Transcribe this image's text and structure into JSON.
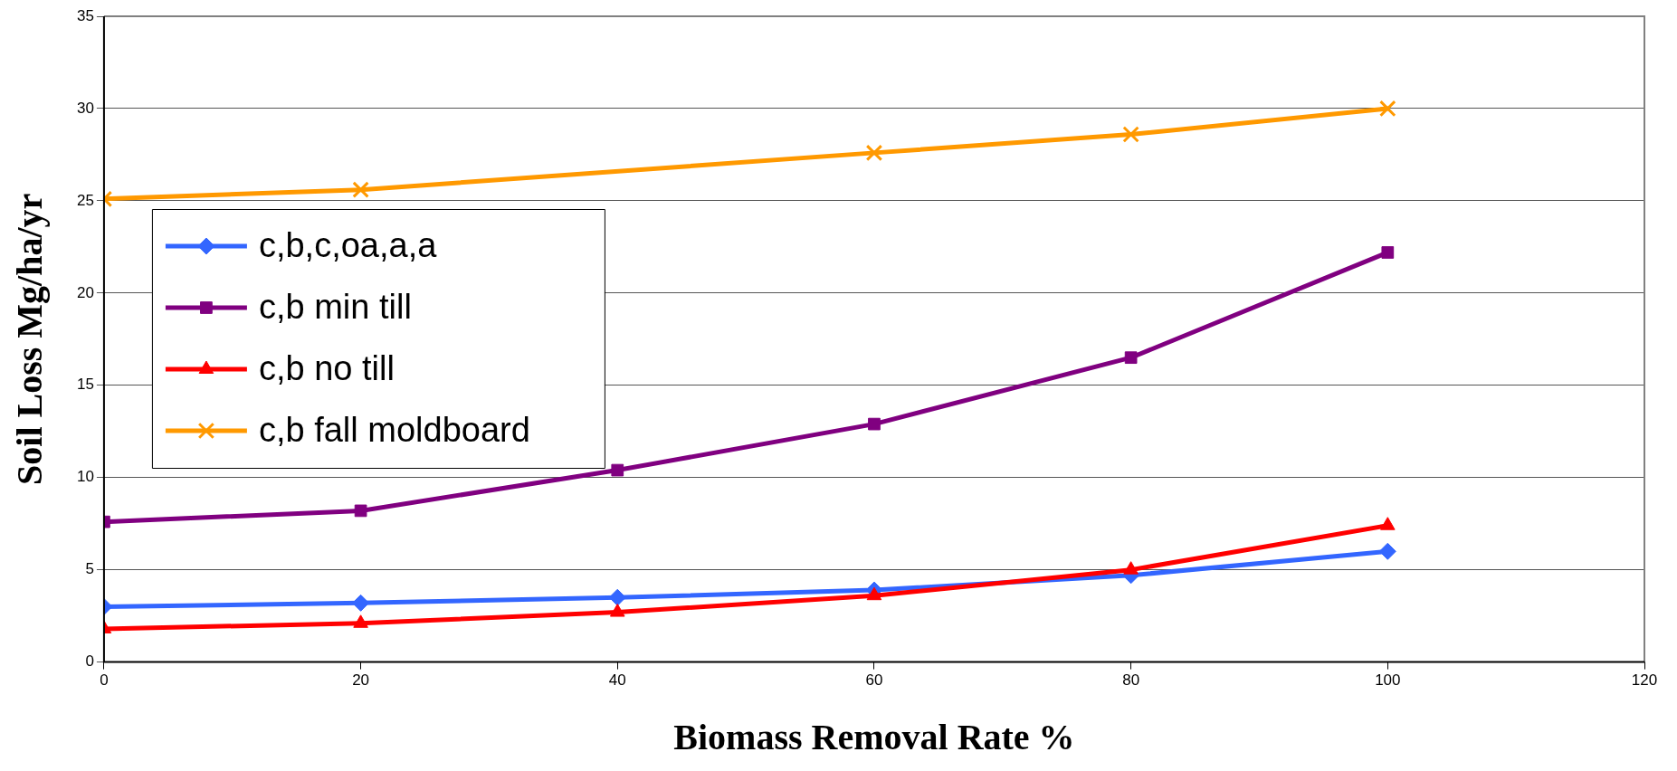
{
  "chart_data": {
    "type": "line",
    "xlabel": "Biomass Removal Rate %",
    "ylabel": "Soil Loss Mg/ha/yr",
    "x": [
      0,
      20,
      40,
      60,
      80,
      100
    ],
    "xlim": [
      0,
      120
    ],
    "xticks": [
      0,
      20,
      40,
      60,
      80,
      100,
      120
    ],
    "ylim": [
      0,
      35
    ],
    "yticks": [
      0,
      5,
      10,
      15,
      20,
      25,
      30,
      35
    ],
    "grid": "y",
    "legend": "left",
    "line_style": "solid",
    "series": [
      {
        "name": "c,b,c,oa,a,a",
        "color": "#3366ff",
        "marker": "diamond",
        "values": [
          3.0,
          3.2,
          3.5,
          3.9,
          4.7,
          6.0
        ]
      },
      {
        "name": "c,b min till",
        "color": "#800080",
        "marker": "square",
        "values": [
          7.6,
          8.2,
          10.4,
          12.9,
          16.5,
          22.2
        ]
      },
      {
        "name": "c,b no till",
        "color": "#ff0000",
        "marker": "triangle",
        "values": [
          1.8,
          2.1,
          2.7,
          3.6,
          5.0,
          7.4
        ]
      },
      {
        "name": "c,b fall moldboard",
        "color": "#ff9900",
        "marker": "cross",
        "values": [
          25.1,
          25.6,
          null,
          27.6,
          28.6,
          30.0
        ]
      }
    ]
  }
}
